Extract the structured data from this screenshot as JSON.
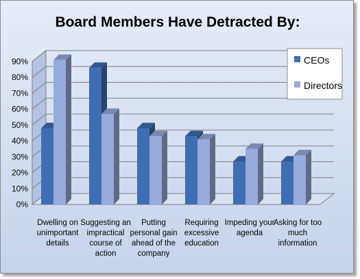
{
  "chart_data": {
    "type": "bar",
    "title": "Board Members Have Detracted By:",
    "categories": [
      [
        "Dwelling on",
        "unimportant",
        "details"
      ],
      [
        "Suggesting an",
        "impractical",
        "course of",
        "action"
      ],
      [
        "Putting",
        "personal gain",
        "ahead of the",
        "company"
      ],
      [
        "Requiring",
        "excessive",
        "education"
      ],
      [
        "Impeding your",
        "agenda"
      ],
      [
        "Asking for too",
        "much",
        "information"
      ]
    ],
    "series": [
      {
        "name": "CEOs",
        "color": "#3f6eb3",
        "values": [
          48,
          86,
          48,
          43,
          27,
          27
        ]
      },
      {
        "name": "Directors",
        "color": "#96acdc",
        "values": [
          91,
          57,
          43,
          41,
          35,
          31
        ]
      }
    ],
    "ylim": [
      0,
      90
    ],
    "yticks": [
      "0%",
      "10%",
      "20%",
      "30%",
      "40%",
      "50%",
      "60%",
      "70%",
      "80%",
      "90%"
    ],
    "grid": true,
    "legend": "right"
  }
}
